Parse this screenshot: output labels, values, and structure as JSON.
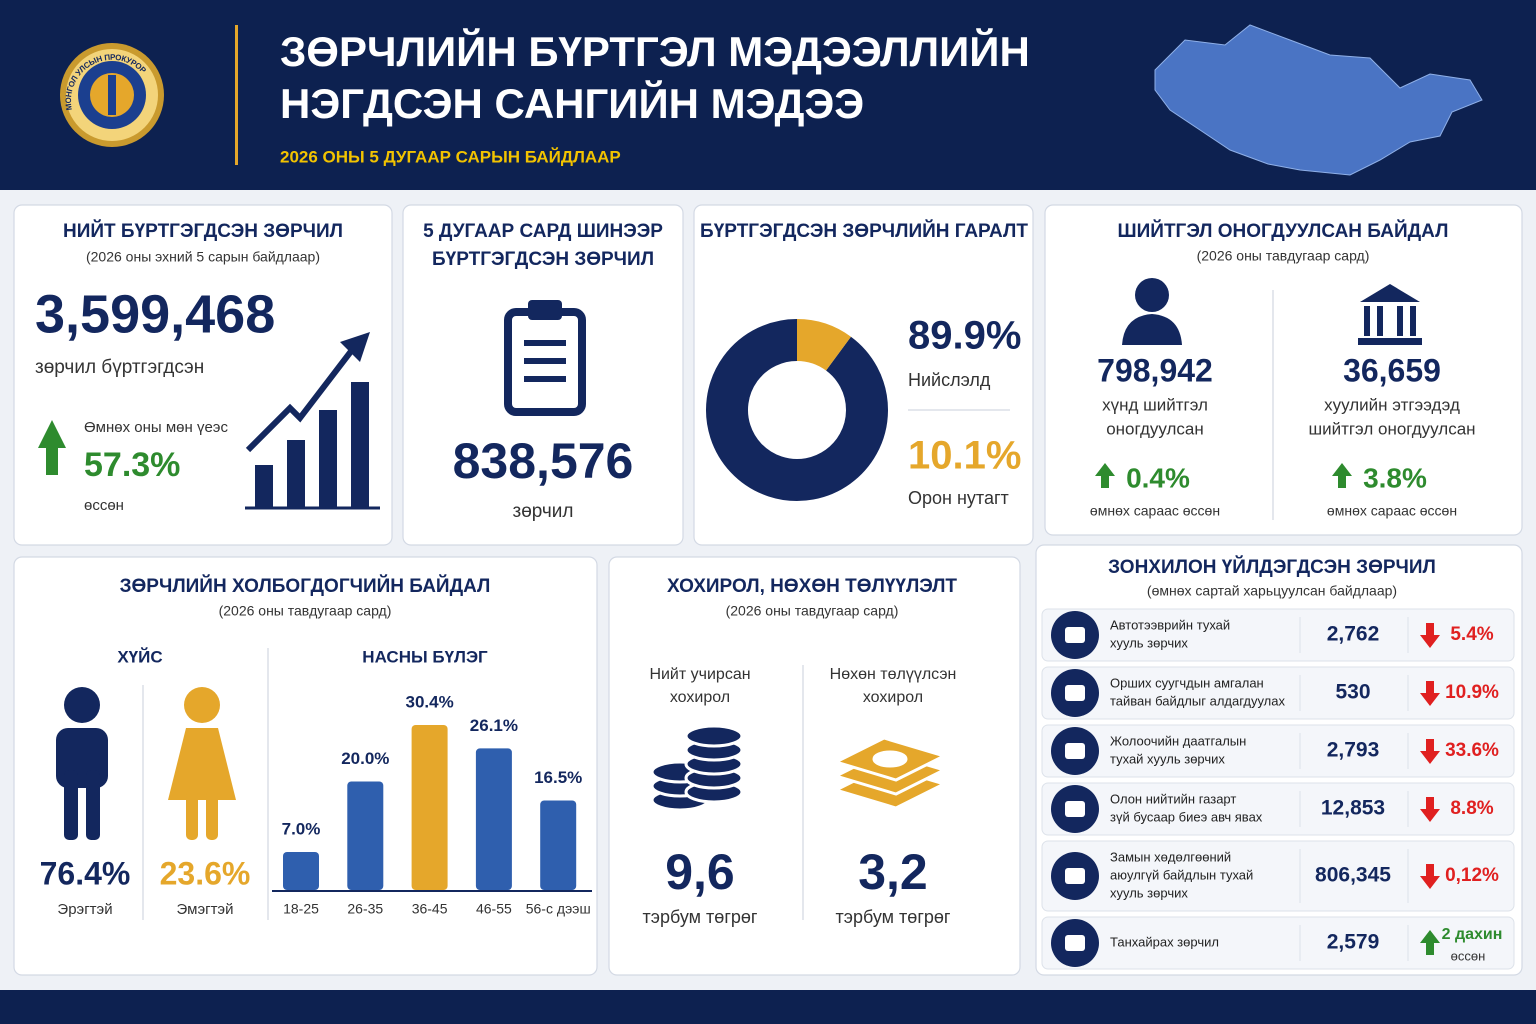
{
  "header": {
    "title": [
      "ЗӨРЧЛИЙН БҮРТГЭЛ МЭДЭЭЛЛИЙН",
      "НЭГДСЭН САНГИЙН МЭДЭЭ"
    ],
    "subtitle": "2026 ОНЫ 5 ДУГААР САРЫН БАЙДЛААР",
    "logo_text": "МОНГОЛ УЛСЫН ПРОКУРОР"
  },
  "total": {
    "title": "НИЙТ БҮРТГЭГДСЭН ЗӨРЧИЛ",
    "subtitle": "(2026 оны эхний 5 сарын байдлаар)",
    "value": "3,599,468",
    "caption": "зөрчил бүртгэгдсэн",
    "compare_label": "Өмнөх оны мөн үеэс",
    "change": "57.3%",
    "change_caption": "өссөн"
  },
  "new": {
    "title": [
      "5 ДУГААР САРД ШИНЭЭР",
      "БҮРТГЭГДСЭН ЗӨРЧИЛ"
    ],
    "value": "838,576",
    "caption": "зөрчил"
  },
  "origin": {
    "title": "БҮРТГЭГДСЭН ЗӨРЧЛИЙН ГАРАЛТ",
    "chart": {
      "type": "donut",
      "categories": [
        "Нийслэлд",
        "Орон нутагт"
      ],
      "values": [
        89.9,
        10.1
      ],
      "value_labels": [
        "89.9%",
        "10.1%"
      ],
      "colors": [
        "#13275e",
        "#e5a72b"
      ]
    }
  },
  "penalty": {
    "title": "ШИЙТГЭЛ ОНОГДУУЛСАН БАЙДАЛ",
    "subtitle": "(2026 оны тавдугаар сард)",
    "items": [
      {
        "value": "798,942",
        "label": [
          "хүнд шийтгэл",
          "оногдуулсан"
        ],
        "change": "0.4%",
        "change_caption": "өмнөх сараас өссөн"
      },
      {
        "value": "36,659",
        "label": [
          "хуулийн этгээдэд",
          "шийтгэл оногдуулсан"
        ],
        "change": "3.8%",
        "change_caption": "өмнөх сараас өссөн"
      }
    ]
  },
  "parties": {
    "title": "ЗӨРЧЛИЙН ХОЛБОГДОГЧИЙН БАЙДАЛ",
    "subtitle": "(2026 оны тавдугаар сард)",
    "gender": {
      "title": "ХҮЙС",
      "items": [
        {
          "label": "Эрэгтэй",
          "value": "76.4%",
          "color": "#13275e"
        },
        {
          "label": "Эмэгтэй",
          "value": "23.6%",
          "color": "#e5a72b"
        }
      ]
    },
    "age": {
      "title": "НАСНЫ БҮЛЭГ",
      "chart": {
        "type": "bar",
        "categories": [
          "18-25",
          "26-35",
          "36-45",
          "46-55",
          "56-с дээш"
        ],
        "values": [
          7.0,
          20.0,
          30.4,
          26.1,
          16.5
        ],
        "value_labels": [
          "7.0%",
          "20.0%",
          "30.4%",
          "26.1%",
          "16.5%"
        ],
        "colors": [
          "#2f5fae",
          "#2f5fae",
          "#e5a72b",
          "#2f5fae",
          "#2f5fae"
        ]
      }
    }
  },
  "damage": {
    "title": "ХОХИРОЛ, НӨХӨН ТӨЛҮҮЛЭЛТ",
    "subtitle": "(2026 оны тавдугаар сард)",
    "items": [
      {
        "label": [
          "Нийт учирсан",
          "хохирол"
        ],
        "value": "9,6",
        "unit": "тэрбум төгрөг"
      },
      {
        "label": [
          "Нөхөн төлүүлсэн",
          "хохирол"
        ],
        "value": "3,2",
        "unit": "тэрбум төгрөг"
      }
    ]
  },
  "common": {
    "title": "ЗОНХИЛОН ҮЙЛДЭГДСЭН ЗӨРЧИЛ",
    "subtitle": "(өмнөх сартай харьцуулсан байдлаар)",
    "rows": [
      {
        "label": [
          "Автотээврийн тухай",
          "хууль зөрчих"
        ],
        "value": "2,762",
        "change": "5.4%",
        "direction": "down"
      },
      {
        "label": [
          "Орших суугчдын амгалан",
          "тайван байдлыг алдагдуулах"
        ],
        "value": "530",
        "change": "10.9%",
        "direction": "down"
      },
      {
        "label": [
          "Жолоочийн даатгалын",
          "тухай хууль зөрчих"
        ],
        "value": "2,793",
        "change": "33.6%",
        "direction": "down"
      },
      {
        "label": [
          "Олон нийтийн газарт",
          "зүй бусаар биеэ авч явах"
        ],
        "value": "12,853",
        "change": "8.8%",
        "direction": "down"
      },
      {
        "label": [
          "Замын хөдөлгөөний",
          "аюулгүй байдлын тухай",
          "хууль зөрчих"
        ],
        "value": "806,345",
        "change": "0,12%",
        "direction": "down"
      },
      {
        "label": [
          "Танхайрах зөрчил"
        ],
        "value": "2,579",
        "change": "2 дахин",
        "change_caption": "өссөн",
        "direction": "up"
      }
    ]
  }
}
